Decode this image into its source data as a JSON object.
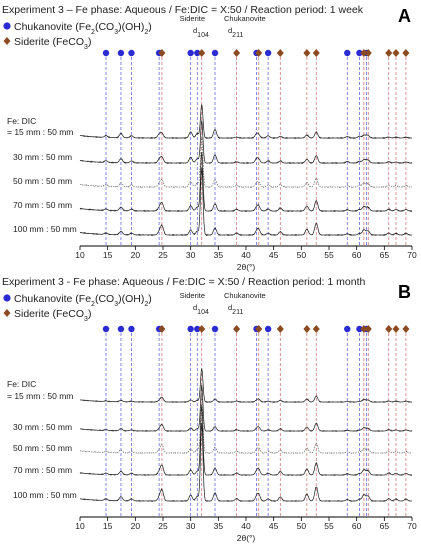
{
  "colors": {
    "chukanovite": "#2b2bd4",
    "siderite": "#8b4a1f",
    "chuk_line": "#6a6ae0",
    "sid_line": "#d07a7a",
    "trace": "#1a1a1a"
  },
  "icons": {
    "chukanovite": "blue-circle-marker",
    "siderite": "brown-diamond-marker"
  },
  "chart_data": [
    {
      "panel": "A",
      "type": "line",
      "title": "Experiment 3 – Fe phase: Aqueous / Fe:DIC = X:50 / Reaction period: 1 week",
      "legend": [
        "Chukanovite (Fe2(CO3)(OH)2)",
        "Siderite (FeCO3)"
      ],
      "legend_chuk": {
        "name": "Chukanovite (Fe",
        "sub1": "2",
        "mid": "(CO",
        "sub2": "3",
        "end": ")(OH)",
        "sub3": "2",
        "close": ")"
      },
      "legend_sid": {
        "name": "Siderite (FeCO",
        "sub": "3",
        "close": ")"
      },
      "annotations": {
        "siderite": "Siderite",
        "siderite_hkl": "d104",
        "chuk": "Chukanovite",
        "chuk_hkl": "d211"
      },
      "fe_dic_label": [
        "Fe: DIC"
      ],
      "xlabel": "2θ(°)",
      "xlim": [
        10,
        70
      ],
      "xticks": [
        10,
        15,
        20,
        25,
        30,
        35,
        40,
        45,
        50,
        55,
        60,
        65,
        70
      ],
      "chukanovite_peaks_2theta": [
        14.7,
        17.4,
        19.3,
        24.3,
        30.0,
        31.2,
        34.4,
        41.9,
        44.0,
        58.3,
        60.5,
        61.8
      ],
      "siderite_peaks_2theta": [
        24.8,
        32.0,
        38.3,
        42.3,
        46.2,
        51.0,
        52.7,
        61.3,
        62.1,
        65.8,
        67.1,
        68.9
      ],
      "series": [
        {
          "name": "= 15 mm : 50 mm",
          "style": "solid"
        },
        {
          "name": "30 mm : 50 mm",
          "style": "solid"
        },
        {
          "name": "50 mm : 50 mm",
          "style": "dotted"
        },
        {
          "name": "70 mm : 50 mm",
          "style": "solid"
        },
        {
          "name": "100 mm : 50 mm",
          "style": "solid"
        }
      ]
    },
    {
      "panel": "B",
      "type": "line",
      "title": "Experiment 3 - Fe phase: Aqueous / Fe:DIC = X:50 / Reaction period: 1 month",
      "legend": [
        "Chukanovite (Fe2(CO3)(OH)2)",
        "Siderite (FeCO3)"
      ],
      "legend_chuk": {
        "name": "Chukanovite (Fe",
        "sub1": "2",
        "mid": "(CO",
        "sub2": "3",
        "end": ")(OH)",
        "sub3": "2",
        "close": ")"
      },
      "legend_sid": {
        "name": "Siderite (FeCO",
        "sub": "3",
        "close": ")"
      },
      "annotations": {
        "siderite": "Siderite",
        "siderite_hkl": "d104",
        "chuk": "Chukanovite",
        "chuk_hkl": "d211"
      },
      "fe_dic_label": [
        "Fe: DIC"
      ],
      "xlabel": "2θ(°)",
      "xlim": [
        10,
        70
      ],
      "xticks": [
        10,
        15,
        20,
        25,
        30,
        35,
        40,
        45,
        50,
        55,
        60,
        65,
        70
      ],
      "chukanovite_peaks_2theta": [
        14.7,
        17.4,
        19.3,
        24.3,
        30.0,
        31.2,
        34.4,
        41.9,
        44.0,
        58.3,
        60.5,
        61.8
      ],
      "siderite_peaks_2theta": [
        24.8,
        32.0,
        38.3,
        42.3,
        46.2,
        51.0,
        52.7,
        61.3,
        62.1,
        65.8,
        67.1,
        68.9
      ],
      "series": [
        {
          "name": "= 15 mm : 50 mm",
          "style": "solid"
        },
        {
          "name": "30 mm : 50 mm",
          "style": "solid"
        },
        {
          "name": "50 mm : 50 mm",
          "style": "dotted"
        },
        {
          "name": "70 mm : 50 mm",
          "style": "solid"
        },
        {
          "name": "100 mm : 50 mm",
          "style": "solid"
        }
      ]
    }
  ]
}
